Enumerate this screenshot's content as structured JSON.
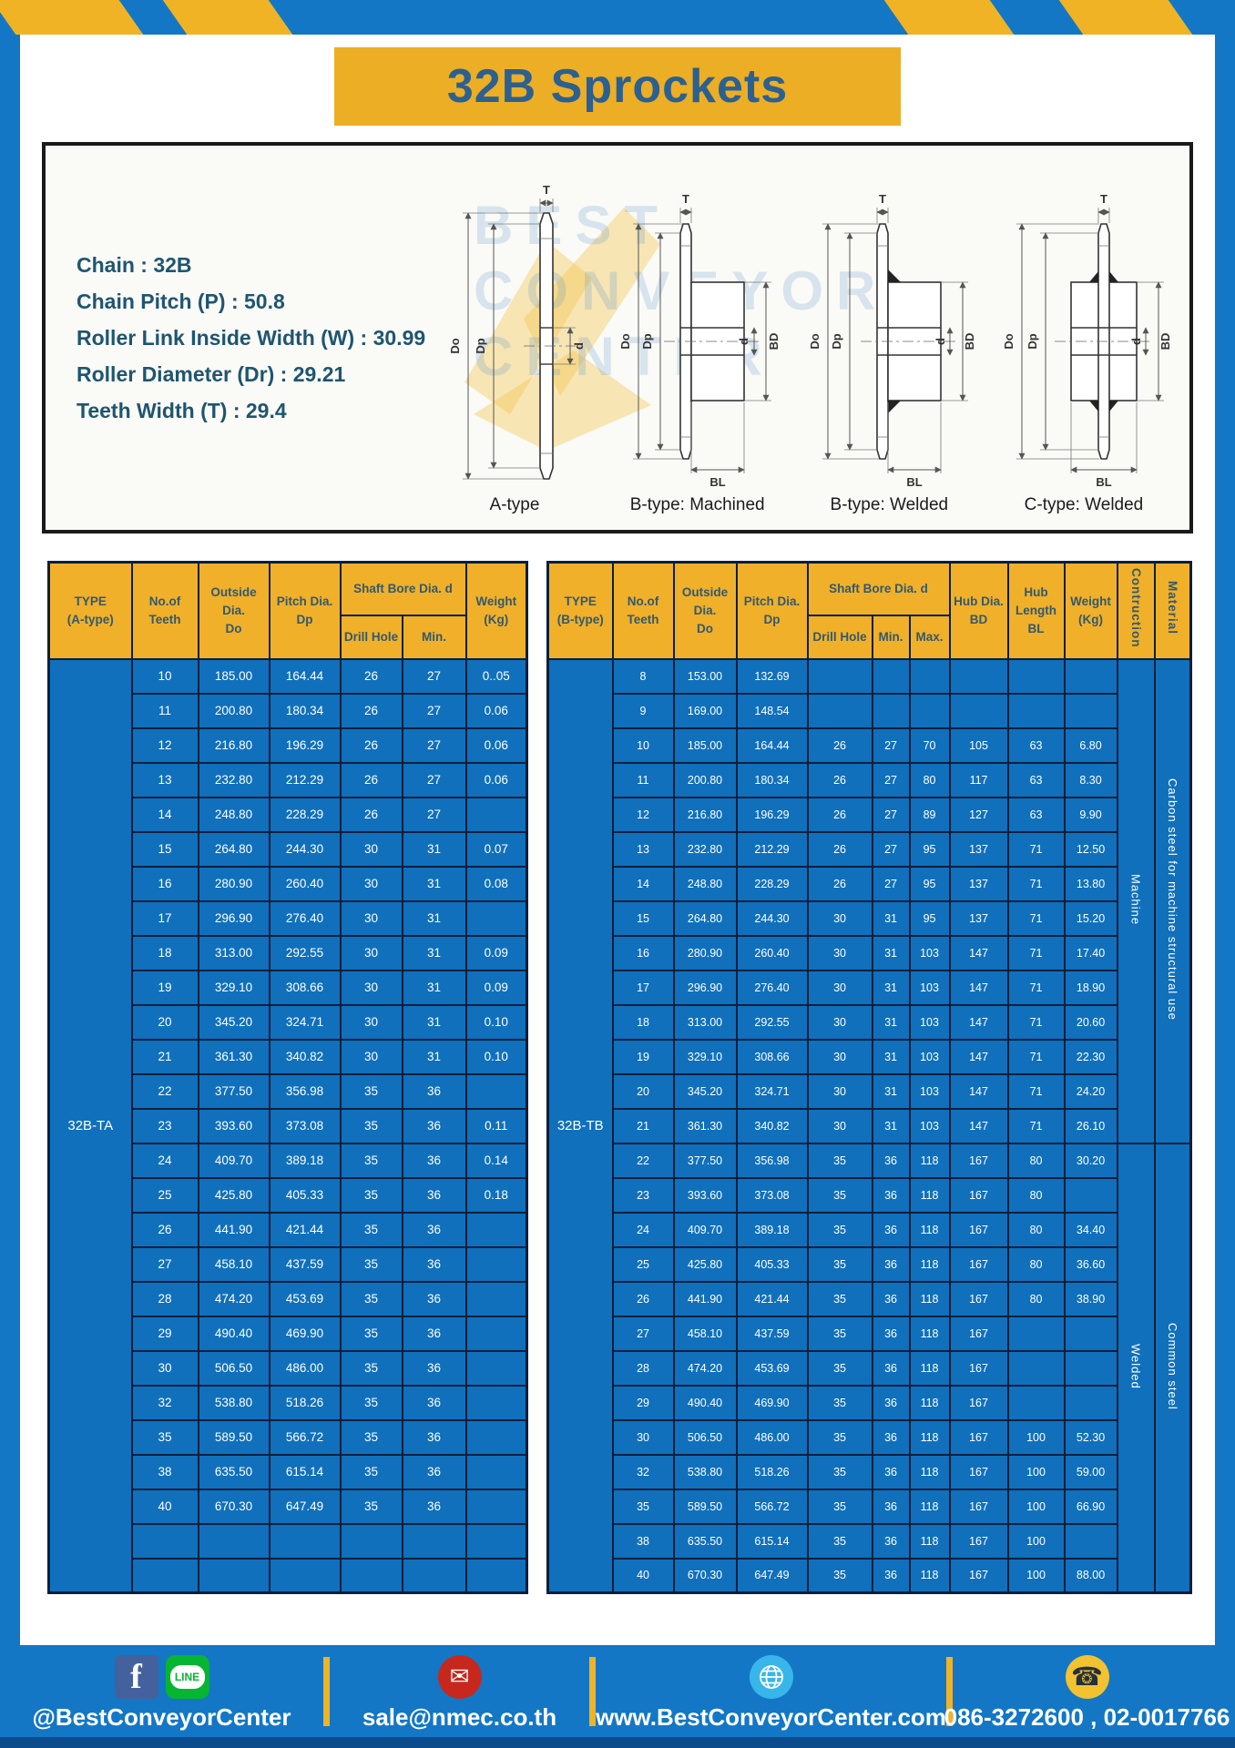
{
  "page": {
    "title": "32B Sprockets"
  },
  "colors": {
    "frame_blue": "#1377C6",
    "cell_blue": "#1070BC",
    "accent_yellow": "#F0B02A",
    "border_navy": "#0B1F3C",
    "title_text": "#2C6090",
    "footer_strip": "#0D4C8C"
  },
  "specs": {
    "lines": [
      "Chain  : 32B",
      "Chain Pitch (P)  :  50.8",
      "Roller Link Inside Width (W)  :  30.99",
      "Roller Diameter (Dr)  : 29.21",
      "Teeth Width (T)  :  29.4"
    ]
  },
  "diagrams": {
    "captions": [
      "A-type",
      "B-type: Machined",
      "B-type: Welded",
      "C-type: Welded"
    ],
    "dim_labels": {
      "t": "T",
      "do": "Do",
      "dp": "Dp",
      "d": "d",
      "bd": "BD",
      "bl": "BL"
    },
    "watermark_lines": [
      "BEST",
      "CONVEYOR",
      "CENTER"
    ]
  },
  "table_a": {
    "headers": {
      "type": "TYPE\n(A-type)",
      "teeth": "No.of\nTeeth",
      "outside": "Outside\nDia.\nDo",
      "pitch": "Pitch Dia.\nDp",
      "shaft_bore": "Shaft Bore Dia. d",
      "drill": "Drill Hole",
      "min": "Min.",
      "weight": "Weight\n(Kg)"
    },
    "type_label": "32B-TA",
    "rows": [
      [
        "10",
        "185.00",
        "164.44",
        "26",
        "27",
        "0..05"
      ],
      [
        "11",
        "200.80",
        "180.34",
        "26",
        "27",
        "0.06"
      ],
      [
        "12",
        "216.80",
        "196.29",
        "26",
        "27",
        "0.06"
      ],
      [
        "13",
        "232.80",
        "212.29",
        "26",
        "27",
        "0.06"
      ],
      [
        "14",
        "248.80",
        "228.29",
        "26",
        "27",
        ""
      ],
      [
        "15",
        "264.80",
        "244.30",
        "30",
        "31",
        "0.07"
      ],
      [
        "16",
        "280.90",
        "260.40",
        "30",
        "31",
        "0.08"
      ],
      [
        "17",
        "296.90",
        "276.40",
        "30",
        "31",
        ""
      ],
      [
        "18",
        "313.00",
        "292.55",
        "30",
        "31",
        "0.09"
      ],
      [
        "19",
        "329.10",
        "308.66",
        "30",
        "31",
        "0.09"
      ],
      [
        "20",
        "345.20",
        "324.71",
        "30",
        "31",
        "0.10"
      ],
      [
        "21",
        "361.30",
        "340.82",
        "30",
        "31",
        "0.10"
      ],
      [
        "22",
        "377.50",
        "356.98",
        "35",
        "36",
        ""
      ],
      [
        "23",
        "393.60",
        "373.08",
        "35",
        "36",
        "0.11"
      ],
      [
        "24",
        "409.70",
        "389.18",
        "35",
        "36",
        "0.14"
      ],
      [
        "25",
        "425.80",
        "405.33",
        "35",
        "36",
        "0.18"
      ],
      [
        "26",
        "441.90",
        "421.44",
        "35",
        "36",
        ""
      ],
      [
        "27",
        "458.10",
        "437.59",
        "35",
        "36",
        ""
      ],
      [
        "28",
        "474.20",
        "453.69",
        "35",
        "36",
        ""
      ],
      [
        "29",
        "490.40",
        "469.90",
        "35",
        "36",
        ""
      ],
      [
        "30",
        "506.50",
        "486.00",
        "35",
        "36",
        ""
      ],
      [
        "32",
        "538.80",
        "518.26",
        "35",
        "36",
        ""
      ],
      [
        "35",
        "589.50",
        "566.72",
        "35",
        "36",
        ""
      ],
      [
        "38",
        "635.50",
        "615.14",
        "35",
        "36",
        ""
      ],
      [
        "40",
        "670.30",
        "647.49",
        "35",
        "36",
        ""
      ],
      [
        "",
        "",
        "",
        "",
        "",
        ""
      ],
      [
        "",
        "",
        "",
        "",
        "",
        ""
      ]
    ]
  },
  "table_b": {
    "headers": {
      "type": "TYPE\n(B-type)",
      "teeth": "No.of\nTeeth",
      "outside": "Outside\nDia.\nDo",
      "pitch": "Pitch Dia.\nDp",
      "shaft_bore": "Shaft Bore Dia. d",
      "drill": "Drill Hole",
      "min": "Min.",
      "max": "Max.",
      "hub_dia": "Hub Dia.\nBD",
      "hub_len": "Hub\nLength\nBL",
      "weight": "Weight\n(Kg)",
      "construction": "Contruction",
      "material": "Material"
    },
    "type_label": "32B-TB",
    "rows": [
      [
        "8",
        "153.00",
        "132.69",
        "",
        "",
        "",
        "",
        "",
        ""
      ],
      [
        "9",
        "169.00",
        "148.54",
        "",
        "",
        "",
        "",
        "",
        ""
      ],
      [
        "10",
        "185.00",
        "164.44",
        "26",
        "27",
        "70",
        "105",
        "63",
        "6.80"
      ],
      [
        "11",
        "200.80",
        "180.34",
        "26",
        "27",
        "80",
        "117",
        "63",
        "8.30"
      ],
      [
        "12",
        "216.80",
        "196.29",
        "26",
        "27",
        "89",
        "127",
        "63",
        "9.90"
      ],
      [
        "13",
        "232.80",
        "212.29",
        "26",
        "27",
        "95",
        "137",
        "71",
        "12.50"
      ],
      [
        "14",
        "248.80",
        "228.29",
        "26",
        "27",
        "95",
        "137",
        "71",
        "13.80"
      ],
      [
        "15",
        "264.80",
        "244.30",
        "30",
        "31",
        "95",
        "137",
        "71",
        "15.20"
      ],
      [
        "16",
        "280.90",
        "260.40",
        "30",
        "31",
        "103",
        "147",
        "71",
        "17.40"
      ],
      [
        "17",
        "296.90",
        "276.40",
        "30",
        "31",
        "103",
        "147",
        "71",
        "18.90"
      ],
      [
        "18",
        "313.00",
        "292.55",
        "30",
        "31",
        "103",
        "147",
        "71",
        "20.60"
      ],
      [
        "19",
        "329.10",
        "308.66",
        "30",
        "31",
        "103",
        "147",
        "71",
        "22.30"
      ],
      [
        "20",
        "345.20",
        "324.71",
        "30",
        "31",
        "103",
        "147",
        "71",
        "24.20"
      ],
      [
        "21",
        "361.30",
        "340.82",
        "30",
        "31",
        "103",
        "147",
        "71",
        "26.10"
      ],
      [
        "22",
        "377.50",
        "356.98",
        "35",
        "36",
        "118",
        "167",
        "80",
        "30.20"
      ],
      [
        "23",
        "393.60",
        "373.08",
        "35",
        "36",
        "118",
        "167",
        "80",
        ""
      ],
      [
        "24",
        "409.70",
        "389.18",
        "35",
        "36",
        "118",
        "167",
        "80",
        "34.40"
      ],
      [
        "25",
        "425.80",
        "405.33",
        "35",
        "36",
        "118",
        "167",
        "80",
        "36.60"
      ],
      [
        "26",
        "441.90",
        "421.44",
        "35",
        "36",
        "118",
        "167",
        "80",
        "38.90"
      ],
      [
        "27",
        "458.10",
        "437.59",
        "35",
        "36",
        "118",
        "167",
        "",
        ""
      ],
      [
        "28",
        "474.20",
        "453.69",
        "35",
        "36",
        "118",
        "167",
        "",
        ""
      ],
      [
        "29",
        "490.40",
        "469.90",
        "35",
        "36",
        "118",
        "167",
        "",
        ""
      ],
      [
        "30",
        "506.50",
        "486.00",
        "35",
        "36",
        "118",
        "167",
        "100",
        "52.30"
      ],
      [
        "32",
        "538.80",
        "518.26",
        "35",
        "36",
        "118",
        "167",
        "100",
        "59.00"
      ],
      [
        "35",
        "589.50",
        "566.72",
        "35",
        "36",
        "118",
        "167",
        "100",
        "66.90"
      ],
      [
        "38",
        "635.50",
        "615.14",
        "35",
        "36",
        "118",
        "167",
        "100",
        ""
      ],
      [
        "40",
        "670.30",
        "647.49",
        "35",
        "36",
        "118",
        "167",
        "100",
        "88.00"
      ]
    ],
    "construction_groups": [
      {
        "label": "Machine",
        "start": 0,
        "span": 14
      },
      {
        "label": "Welded",
        "start": 14,
        "span": 13
      }
    ],
    "material_groups": [
      {
        "label": "Carbon steel for machine structural use",
        "start": 0,
        "span": 14
      },
      {
        "label": "Common steel",
        "start": 14,
        "span": 13
      }
    ]
  },
  "footer": {
    "items": [
      {
        "icon": "facebook-line-icons",
        "label": "@BestConveyorCenter"
      },
      {
        "icon": "email-icon",
        "label": "sale@nmec.co.th"
      },
      {
        "icon": "globe-icon",
        "label": "www.BestConveyorCenter.com"
      },
      {
        "icon": "phone-icon",
        "label": "086-3272600 , 02-0017766"
      }
    ],
    "icons": {
      "facebook_glyph": "f",
      "line_text": "LINE",
      "email_glyph": "✉",
      "phone_glyph": "☎"
    }
  }
}
